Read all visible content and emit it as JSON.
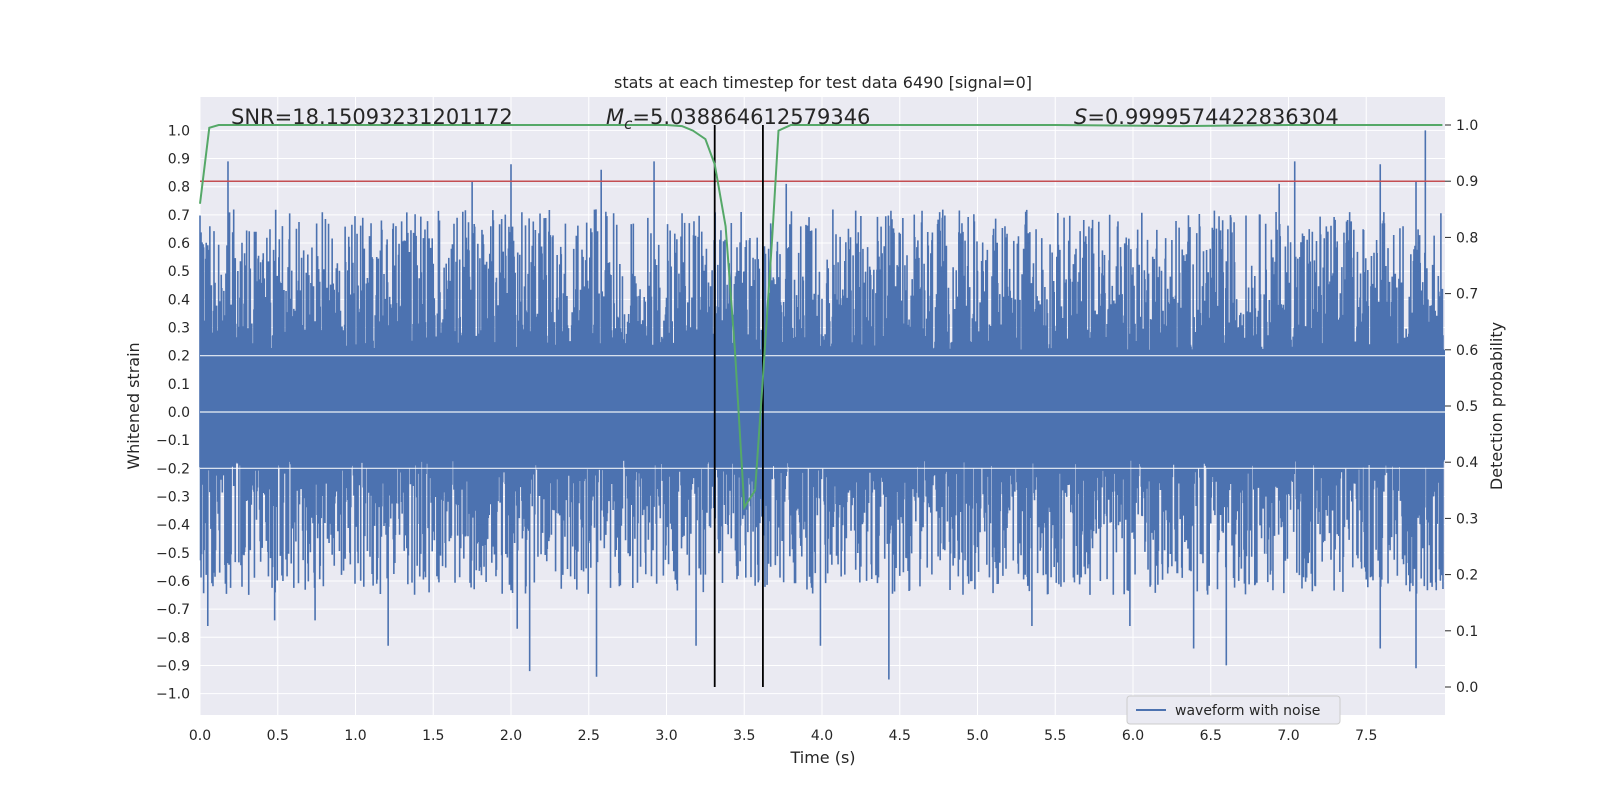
{
  "chart_data": {
    "type": "line",
    "title": "stats at each timestep for test data 6490 [signal=0]",
    "xlabel": "Time (s)",
    "ylabel": "Whitened strain",
    "y2label": "Detection probability",
    "xlim": [
      0.0,
      8.0
    ],
    "ylim": [
      -1.05,
      1.08
    ],
    "y2lim": [
      -0.045,
      1.025
    ],
    "x_ticks": [
      "0.0",
      "0.5",
      "1.0",
      "1.5",
      "2.0",
      "2.5",
      "3.0",
      "3.5",
      "4.0",
      "4.5",
      "5.0",
      "5.5",
      "6.0",
      "6.5",
      "7.0",
      "7.5"
    ],
    "y_ticks": [
      "1.0",
      "0.9",
      "0.8",
      "0.7",
      "0.6",
      "0.5",
      "0.4",
      "0.3",
      "0.2",
      "0.1",
      "0.0",
      "−0.1",
      "−0.2",
      "−0.3",
      "−0.4",
      "−0.5",
      "−0.6",
      "−0.7",
      "−0.8",
      "−0.9",
      "−1.0"
    ],
    "y2_ticks": [
      "1.0",
      "0.9",
      "0.8",
      "0.7",
      "0.6",
      "0.5",
      "0.4",
      "0.3",
      "0.2",
      "0.1",
      "0.0"
    ],
    "grid": true,
    "legend": {
      "placement": "lower-right",
      "entries": [
        "waveform with noise"
      ]
    },
    "annotations": {
      "snr": "SNR=18.15093231201172",
      "mc_symbol": "M",
      "mc_sub": "c",
      "mc_value": "=5.038864612579346",
      "s_symbol": "S",
      "s_value": "=0.9999574422836304"
    },
    "threshold_line": {
      "axis": "y2",
      "value": 0.9,
      "color": "#c44e52"
    },
    "vertical_lines": [
      3.31,
      3.62
    ],
    "waveform": {
      "name": "waveform with noise",
      "color": "#4c72b0",
      "duration": 8.0,
      "dense_band": [
        -0.17,
        0.22
      ],
      "peak_high": [
        [
          0.18,
          0.89
        ],
        [
          2.0,
          0.88
        ],
        [
          1.75,
          0.82
        ],
        [
          2.58,
          0.86
        ],
        [
          2.92,
          0.89
        ],
        [
          3.77,
          0.81
        ],
        [
          7.04,
          0.89
        ],
        [
          7.59,
          0.88
        ],
        [
          7.88,
          1.0
        ],
        [
          6.94,
          0.81
        ],
        [
          7.82,
          0.82
        ],
        [
          0.35,
          0.64
        ],
        [
          0.53,
          0.66
        ],
        [
          1.1,
          0.67
        ],
        [
          4.9,
          0.67
        ]
      ],
      "peak_low": [
        [
          0.05,
          -0.76
        ],
        [
          0.48,
          -0.74
        ],
        [
          0.74,
          -0.74
        ],
        [
          1.21,
          -0.83
        ],
        [
          2.12,
          -0.92
        ],
        [
          2.55,
          -0.94
        ],
        [
          3.19,
          -0.83
        ],
        [
          3.99,
          -0.83
        ],
        [
          4.43,
          -0.95
        ],
        [
          5.35,
          -0.76
        ],
        [
          6.39,
          -0.84
        ],
        [
          6.6,
          -0.9
        ],
        [
          7.59,
          -0.84
        ],
        [
          7.82,
          -0.91
        ],
        [
          2.04,
          -0.77
        ],
        [
          5.98,
          -0.76
        ]
      ]
    },
    "detection_probability": {
      "color": "#55a868",
      "x": [
        0.0,
        0.06,
        0.12,
        0.2,
        1.0,
        2.0,
        3.0,
        3.1,
        3.17,
        3.25,
        3.31,
        3.38,
        3.44,
        3.5,
        3.57,
        3.62,
        3.68,
        3.72,
        3.8,
        4.5,
        5.5,
        6.3,
        7.0,
        7.99
      ],
      "y": [
        0.86,
        0.995,
        1.0,
        1.0,
        1.0,
        1.0,
        1.0,
        0.998,
        0.99,
        0.975,
        0.93,
        0.82,
        0.6,
        0.32,
        0.35,
        0.55,
        0.8,
        0.99,
        1.0,
        1.0,
        1.0,
        0.998,
        1.0,
        1.0
      ]
    }
  }
}
